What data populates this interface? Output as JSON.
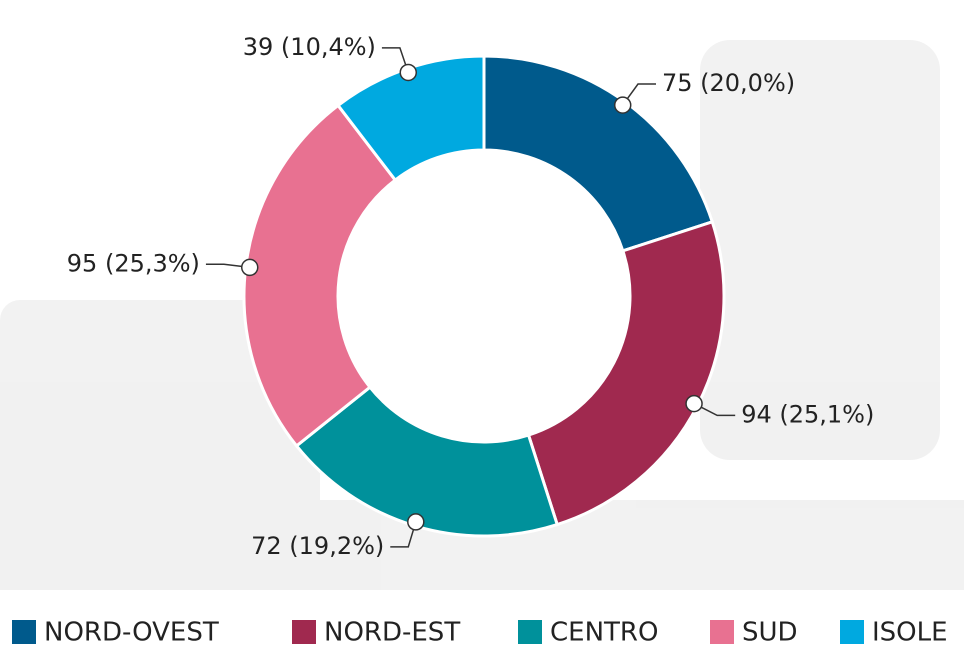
{
  "chart_data": {
    "type": "donut",
    "categories": [
      "NORD-OVEST",
      "NORD-EST",
      "CENTRO",
      "SUD",
      "ISOLE"
    ],
    "values": [
      75,
      94,
      72,
      95,
      39
    ],
    "value_labels": [
      "75 (20,0%)",
      "94 (25,1%)",
      "72 (19,2%)",
      "95 (25,3%)",
      "39 (10,4%)"
    ],
    "colors": [
      "#005a8c",
      "#a0294f",
      "#00919b",
      "#e87191",
      "#00a9e0"
    ],
    "legend": "bottom"
  }
}
